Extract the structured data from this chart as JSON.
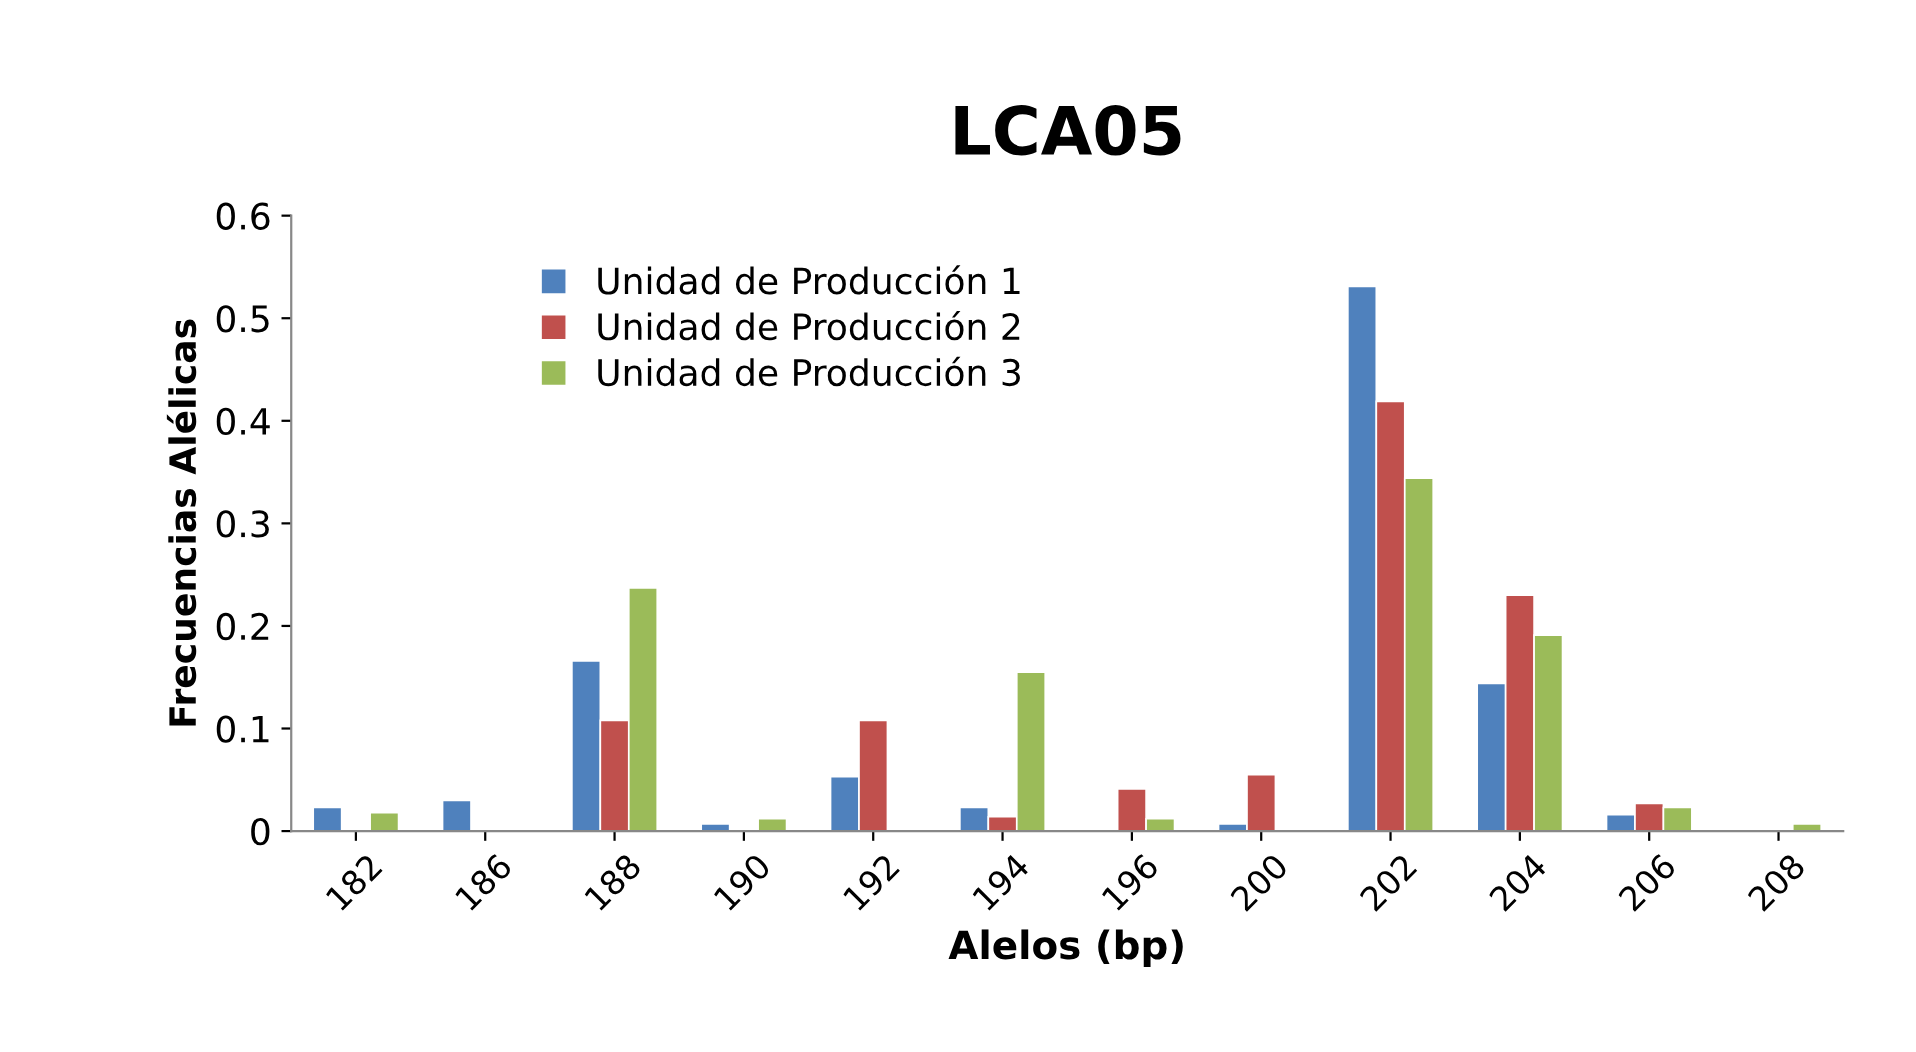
{
  "chart_data": {
    "type": "bar",
    "title": "LCA05",
    "xlabel": "Alelos (bp)",
    "ylabel": "Frecuencias Alélicas",
    "categories": [
      "182",
      "186",
      "188",
      "190",
      "192",
      "194",
      "196",
      "200",
      "202",
      "204",
      "206",
      "208"
    ],
    "series": [
      {
        "name": "Unidad de Producción 1",
        "color": "#4f81bd",
        "values": [
          0.023,
          0.03,
          0.166,
          0.007,
          0.053,
          0.023,
          null,
          0.007,
          0.531,
          0.144,
          0.016,
          null
        ]
      },
      {
        "name": "Unidad de Producción 2",
        "color": "#c0504d",
        "values": [
          null,
          null,
          0.108,
          null,
          0.108,
          0.014,
          0.041,
          0.055,
          0.419,
          0.23,
          0.027,
          null
        ]
      },
      {
        "name": "Unidad de Producción 3",
        "color": "#9bbb59",
        "values": [
          0.018,
          null,
          0.237,
          0.012,
          null,
          0.155,
          0.012,
          null,
          0.344,
          0.191,
          0.023,
          0.007
        ]
      }
    ],
    "ylim": [
      0,
      0.6
    ],
    "yticks": [
      0,
      0.1,
      0.2,
      0.3,
      0.4,
      0.5,
      0.6
    ],
    "grid": false,
    "legend": "top left"
  }
}
